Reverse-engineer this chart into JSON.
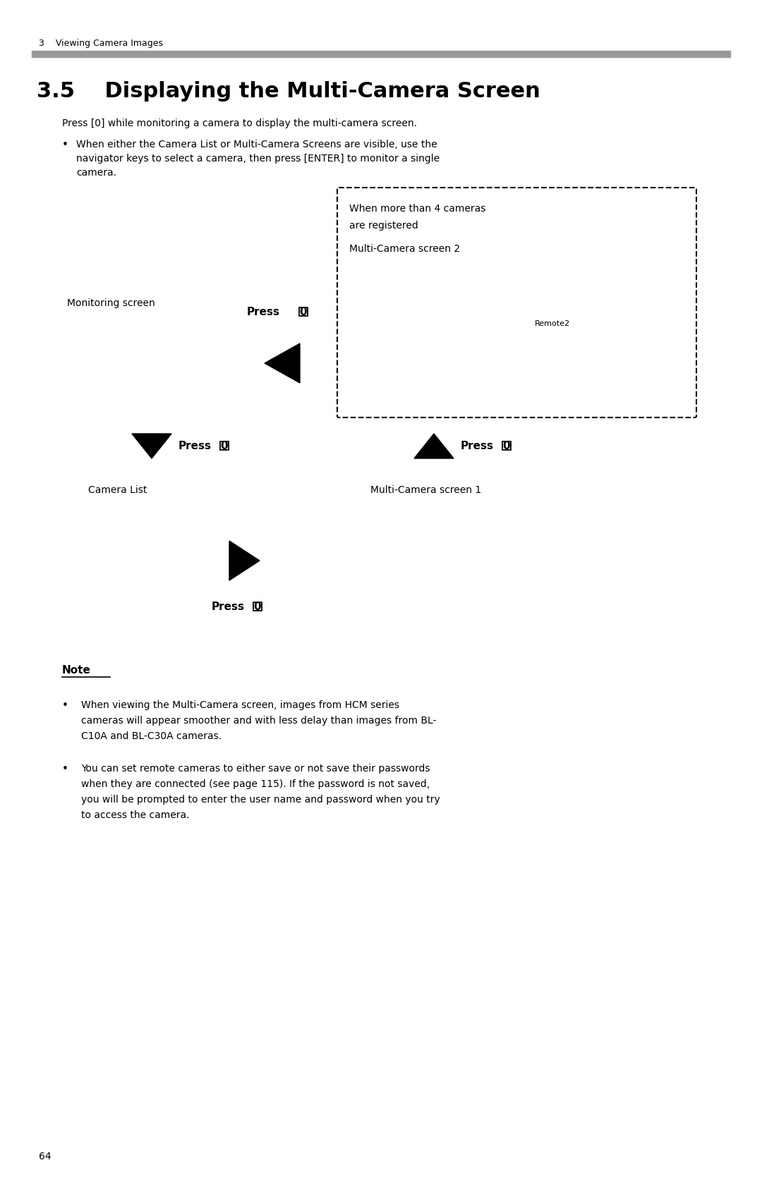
{
  "bg_color": "#ffffff",
  "page_width": 10.8,
  "page_height": 16.69,
  "header_text": "3    Viewing Camera Images",
  "title": "3.5    Displaying the Multi-Camera Screen",
  "intro_text": "Press [0] while monitoring a camera to display the multi-camera screen.",
  "bullet1_line1": "When either the Camera List or Multi-Camera Screens are visible, use the",
  "bullet1_line2": "navigator keys to select a camera, then press [ENTER] to monitor a single",
  "bullet1_line3": "camera.",
  "dashed_box_label1": "When more than 4 cameras",
  "dashed_box_label2": "are registered",
  "dashed_box_label3": "Multi-Camera screen 2",
  "dashed_box_inner": "Remote2",
  "monitoring_screen_label": "Monitoring screen",
  "camera_list_label": "Camera List",
  "multi_camera1_label": "Multi-Camera screen 1",
  "note_title": "Note",
  "note_bullet1_line1": "When viewing the Multi-Camera screen, images from HCM series",
  "note_bullet1_line2": "cameras will appear smoother and with less delay than images from BL-",
  "note_bullet1_line3": "C10A and BL-C30A cameras.",
  "note_bullet2_line1": "You can set remote cameras to either save or not save their passwords",
  "note_bullet2_line2": "when they are connected (see page 115). If the password is not saved,",
  "note_bullet2_line3": "you will be prompted to enter the user name and password when you try",
  "note_bullet2_line4": "to access the camera.",
  "page_number": "64",
  "text_color": "#000000"
}
